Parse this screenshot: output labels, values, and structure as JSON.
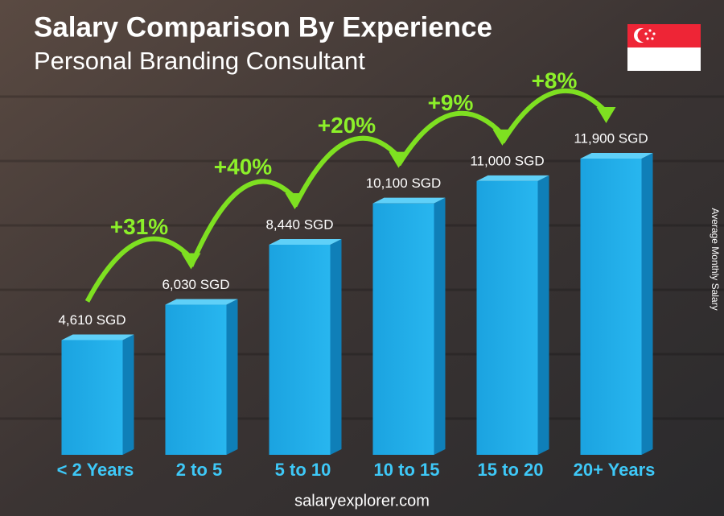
{
  "chart_data": {
    "type": "bar",
    "title": "Salary Comparison By Experience",
    "subtitle": "Personal Branding Consultant",
    "y_axis_label": "Average Monthly Salary",
    "categories": [
      "< 2 Years",
      "2 to 5",
      "5 to 10",
      "10 to 15",
      "15 to 20",
      "20+ Years"
    ],
    "values": [
      4610,
      6030,
      8440,
      10100,
      11000,
      11900
    ],
    "value_labels": [
      "4,610 SGD",
      "6,030 SGD",
      "8,440 SGD",
      "10,100 SGD",
      "11,000 SGD",
      "11,900 SGD"
    ],
    "annotations": [
      "+31%",
      "+40%",
      "+20%",
      "+9%",
      "+8%"
    ],
    "color": "#1fa8e4",
    "source": "salaryexplorer.com"
  }
}
